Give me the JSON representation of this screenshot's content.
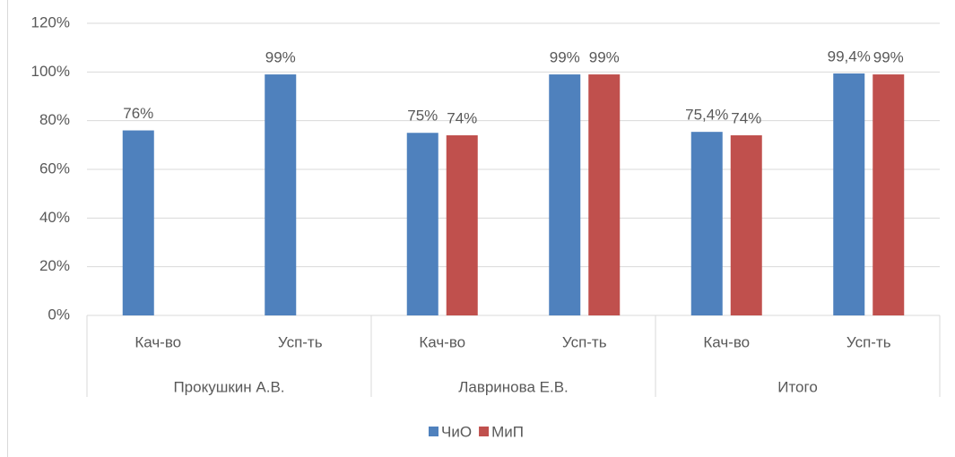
{
  "chart_data": {
    "type": "bar",
    "categories": [
      "Кач-во",
      "Усп-ть",
      "Кач-во",
      "Усп-ть",
      "Кач-во",
      "Усп-ть"
    ],
    "category_groups": [
      "Прокушкин А.В.",
      "Лавринова Е.В.",
      "Итого"
    ],
    "series": [
      {
        "name": "ЧиО",
        "color": "#4f81bd",
        "values": [
          76,
          99,
          75,
          99,
          75.4,
          99.4
        ],
        "value_labels": [
          "76%",
          "99%",
          "75%",
          "99%",
          "75,4%",
          "99,4%"
        ]
      },
      {
        "name": "МиП",
        "color": "#c0504d",
        "values": [
          null,
          null,
          74,
          99,
          74,
          99
        ],
        "value_labels": [
          null,
          null,
          "74%",
          "99%",
          "74%",
          "99%"
        ]
      }
    ],
    "ylim": [
      0,
      120
    ],
    "yticks": [
      {
        "value": 0,
        "label": "0%"
      },
      {
        "value": 20,
        "label": "20%"
      },
      {
        "value": 40,
        "label": "40%"
      },
      {
        "value": 60,
        "label": "60%"
      },
      {
        "value": 80,
        "label": "80%"
      },
      {
        "value": 100,
        "label": "100%"
      },
      {
        "value": 120,
        "label": "120%"
      }
    ],
    "grid": true,
    "legend": "bottom"
  }
}
